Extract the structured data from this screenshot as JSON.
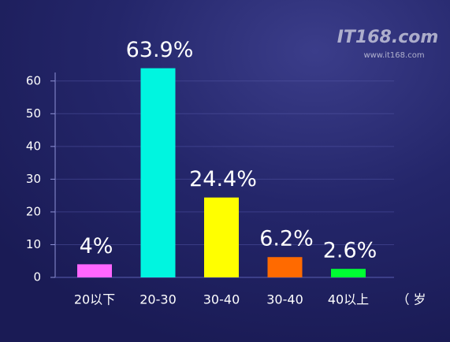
{
  "chart_data": {
    "type": "bar",
    "categories": [
      "20以下",
      "20-30",
      "30-40",
      "30-40",
      "40以上"
    ],
    "values": [
      4,
      63.9,
      24.4,
      6.2,
      2.6
    ],
    "value_labels": [
      "4%",
      "63.9%",
      "24.4%",
      "6.2%",
      "2.6%"
    ],
    "colors": [
      "#ff66ff",
      "#00f5e0",
      "#ffff00",
      "#ff6a00",
      "#00ff33"
    ],
    "x_label": "（ 岁",
    "ylim": [
      0,
      65
    ],
    "yticks": [
      0,
      10,
      20,
      30,
      40,
      50,
      60
    ],
    "grid": true,
    "watermark": "IT168.com",
    "watermark_url": "www.it168.com"
  }
}
